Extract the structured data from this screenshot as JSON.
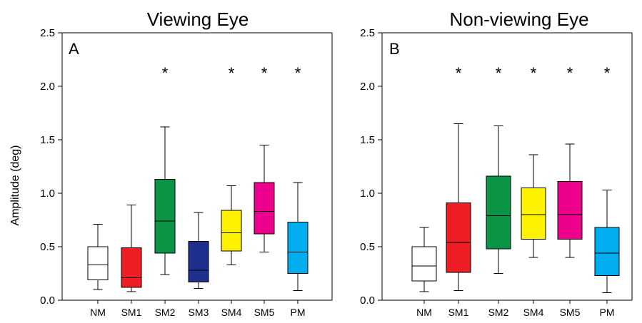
{
  "chart_data": [
    {
      "type": "box",
      "panel": "A",
      "title": "Viewing Eye",
      "ylabel": "Amplitude (deg)",
      "ylim": [
        0,
        2.5
      ],
      "yticks": [
        "0.0",
        "0.5",
        "1.0",
        "1.5",
        "2.0",
        "2.5"
      ],
      "categories": [
        "NM",
        "SM1",
        "SM2",
        "SM3",
        "SM4",
        "SM5",
        "PM"
      ],
      "boxes": [
        {
          "label": "NM",
          "whisker_low": 0.1,
          "q1": 0.19,
          "median": 0.33,
          "q3": 0.5,
          "whisker_high": 0.71,
          "color": "#ffffff",
          "significant": false
        },
        {
          "label": "SM1",
          "whisker_low": 0.08,
          "q1": 0.12,
          "median": 0.21,
          "q3": 0.49,
          "whisker_high": 0.89,
          "color": "#ee1c25",
          "significant": false
        },
        {
          "label": "SM2",
          "whisker_low": 0.24,
          "q1": 0.44,
          "median": 0.74,
          "q3": 1.13,
          "whisker_high": 1.62,
          "color": "#0b9446",
          "significant": true
        },
        {
          "label": "SM3",
          "whisker_low": 0.11,
          "q1": 0.17,
          "median": 0.28,
          "q3": 0.55,
          "whisker_high": 0.82,
          "color": "#1f2f8f",
          "significant": false
        },
        {
          "label": "SM4",
          "whisker_low": 0.33,
          "q1": 0.46,
          "median": 0.63,
          "q3": 0.84,
          "whisker_high": 1.07,
          "color": "#fff200",
          "significant": true
        },
        {
          "label": "SM5",
          "whisker_low": 0.45,
          "q1": 0.62,
          "median": 0.83,
          "q3": 1.1,
          "whisker_high": 1.45,
          "color": "#ec008c",
          "significant": true
        },
        {
          "label": "PM",
          "whisker_low": 0.09,
          "q1": 0.25,
          "median": 0.45,
          "q3": 0.73,
          "whisker_high": 1.1,
          "color": "#00aeef",
          "significant": true
        }
      ],
      "marker": "*"
    },
    {
      "type": "box",
      "panel": "B",
      "title": "Non-viewing Eye",
      "ylabel": "",
      "ylim": [
        0,
        2.5
      ],
      "yticks": [
        "0.0",
        "0.5",
        "1.0",
        "1.5",
        "2.0",
        "2.5"
      ],
      "categories": [
        "NM",
        "SM1",
        "SM2",
        "SM4",
        "SM5",
        "PM"
      ],
      "boxes": [
        {
          "label": "NM",
          "whisker_low": 0.08,
          "q1": 0.18,
          "median": 0.32,
          "q3": 0.5,
          "whisker_high": 0.68,
          "color": "#ffffff",
          "significant": false
        },
        {
          "label": "SM1",
          "whisker_low": 0.09,
          "q1": 0.26,
          "median": 0.54,
          "q3": 0.91,
          "whisker_high": 1.65,
          "color": "#ee1c25",
          "significant": true
        },
        {
          "label": "SM2",
          "whisker_low": 0.25,
          "q1": 0.48,
          "median": 0.79,
          "q3": 1.16,
          "whisker_high": 1.63,
          "color": "#0b9446",
          "significant": true
        },
        {
          "label": "SM4",
          "whisker_low": 0.4,
          "q1": 0.57,
          "median": 0.8,
          "q3": 1.05,
          "whisker_high": 1.36,
          "color": "#fff200",
          "significant": true
        },
        {
          "label": "SM5",
          "whisker_low": 0.4,
          "q1": 0.57,
          "median": 0.8,
          "q3": 1.11,
          "whisker_high": 1.46,
          "color": "#ec008c",
          "significant": true
        },
        {
          "label": "PM",
          "whisker_low": 0.07,
          "q1": 0.23,
          "median": 0.44,
          "q3": 0.68,
          "whisker_high": 1.03,
          "color": "#00aeef",
          "significant": true
        }
      ],
      "marker": "*"
    }
  ]
}
